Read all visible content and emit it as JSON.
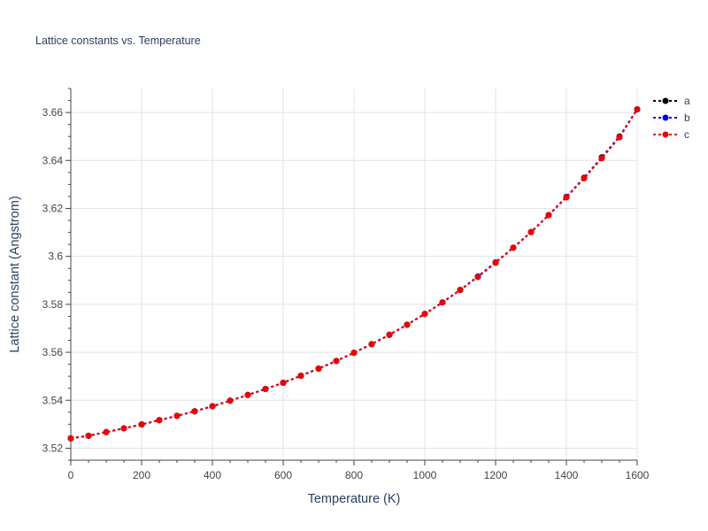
{
  "chart_data": {
    "type": "line",
    "title": "Lattice constants vs. Temperature",
    "xlabel": "Temperature (K)",
    "ylabel": "Lattice constant (Angstrom)",
    "xlim": [
      0,
      1600
    ],
    "ylim": [
      3.515,
      3.67
    ],
    "xticks": [
      0,
      200,
      400,
      600,
      800,
      1000,
      1200,
      1400,
      1600
    ],
    "xtick_labels": [
      "0",
      "200",
      "400",
      "600",
      "800",
      "1000",
      "1200",
      "1400",
      "1600"
    ],
    "yticks": [
      3.52,
      3.54,
      3.56,
      3.58,
      3.6,
      3.62,
      3.64,
      3.66
    ],
    "ytick_labels": [
      "3.52",
      "3.54",
      "3.56",
      "3.58",
      "3.6",
      "3.62",
      "3.64",
      "3.66"
    ],
    "grid": true,
    "legend_position": "top-right",
    "x": [
      0,
      50,
      100,
      150,
      200,
      250,
      300,
      350,
      400,
      450,
      500,
      550,
      600,
      650,
      700,
      750,
      800,
      850,
      900,
      950,
      1000,
      1050,
      1100,
      1150,
      1200,
      1250,
      1300,
      1350,
      1400,
      1450,
      1500,
      1550,
      1600
    ],
    "series": [
      {
        "name": "a",
        "color": "#000000",
        "values": [
          3.5241,
          3.5252,
          3.5267,
          3.5283,
          3.5299,
          3.5317,
          3.5335,
          3.5354,
          3.5375,
          3.5398,
          3.5422,
          3.5447,
          3.5473,
          3.5502,
          3.5532,
          3.5564,
          3.5598,
          3.5634,
          3.5673,
          3.5715,
          3.576,
          3.5808,
          3.586,
          3.5916,
          3.5975,
          3.6036,
          3.6101,
          3.6172,
          3.6248,
          3.6328,
          3.6413,
          3.65,
          3.6613
        ]
      },
      {
        "name": "b",
        "color": "#0000ee",
        "values": [
          3.5241,
          3.5252,
          3.5267,
          3.5283,
          3.5299,
          3.5317,
          3.5335,
          3.5354,
          3.5375,
          3.5398,
          3.5422,
          3.5447,
          3.5473,
          3.5502,
          3.5532,
          3.5564,
          3.5598,
          3.5634,
          3.5673,
          3.5715,
          3.576,
          3.5808,
          3.586,
          3.5916,
          3.5975,
          3.6036,
          3.6101,
          3.6172,
          3.6248,
          3.6326,
          3.6411,
          3.6497,
          3.6613
        ]
      },
      {
        "name": "c",
        "color": "#ee0000",
        "values": [
          3.5241,
          3.5252,
          3.5267,
          3.5283,
          3.5299,
          3.5317,
          3.5335,
          3.5354,
          3.5375,
          3.5398,
          3.5422,
          3.5447,
          3.5473,
          3.5502,
          3.5532,
          3.5564,
          3.5598,
          3.5634,
          3.5673,
          3.5715,
          3.576,
          3.5808,
          3.586,
          3.5914,
          3.5973,
          3.6036,
          3.6101,
          3.6172,
          3.6246,
          3.6326,
          3.6409,
          3.6497,
          3.6613
        ]
      }
    ]
  }
}
